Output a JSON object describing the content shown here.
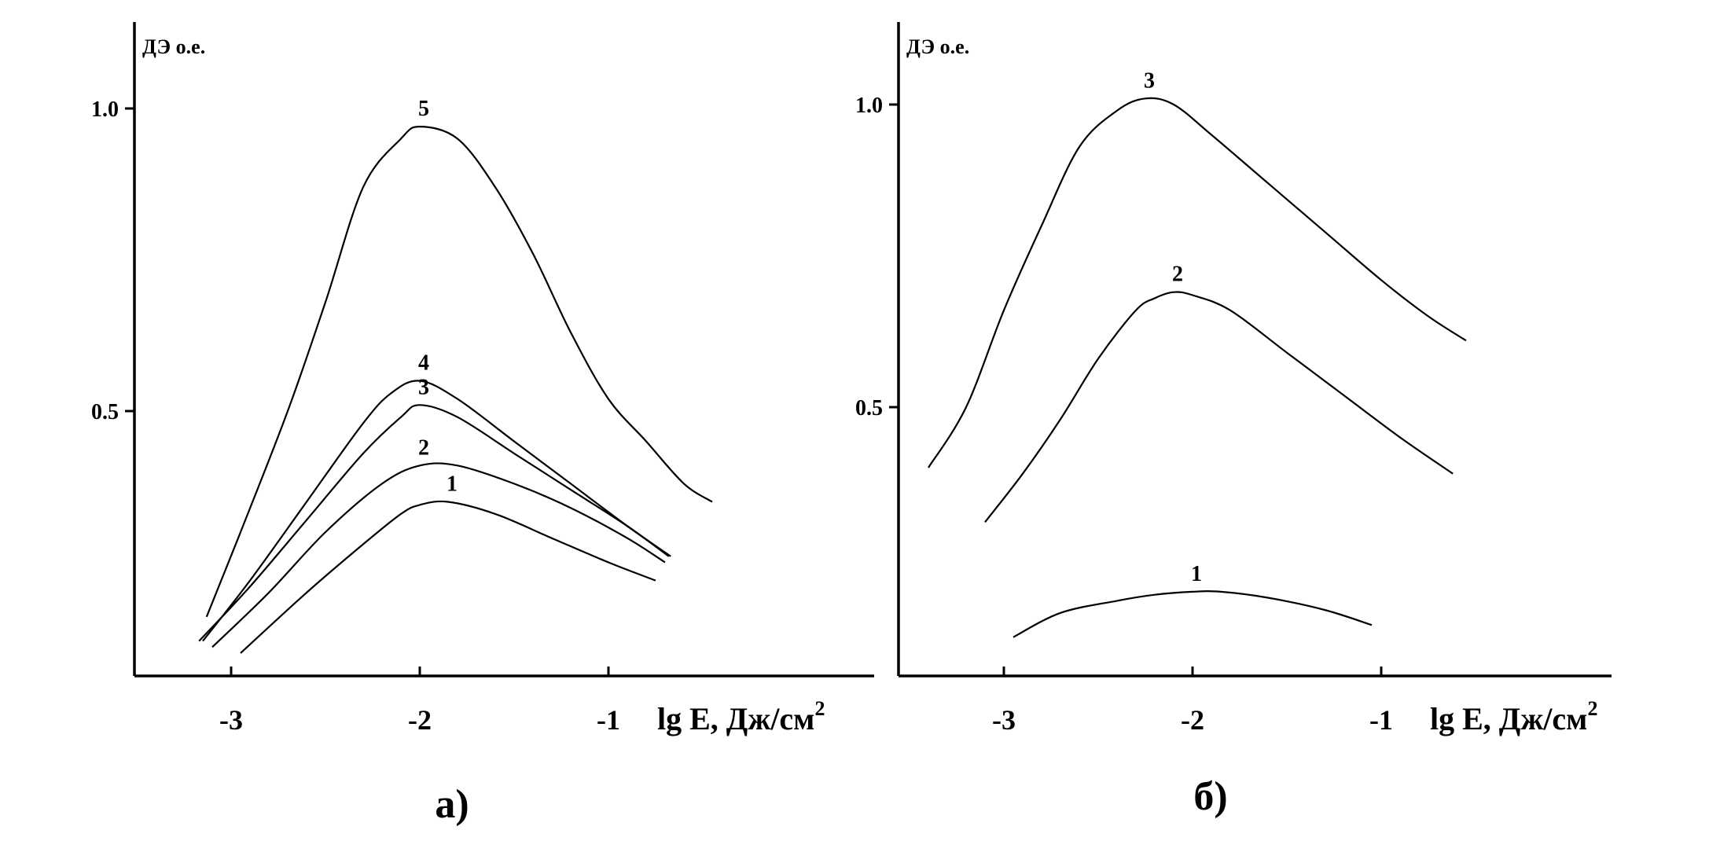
{
  "chart_data": [
    {
      "type": "line",
      "panel_label": "а)",
      "ylabel": "ДЭ о.е.",
      "xlabel": "lg E, Дж/см",
      "xlabel_superscript": "2",
      "xticks": [
        -3,
        -2,
        -1
      ],
      "xtick_labels": [
        "-3",
        "-2",
        "-1"
      ],
      "yticks": [
        0.5,
        1.0
      ],
      "ytick_labels": [
        "0.5",
        "1.0"
      ],
      "xlim": [
        -3.5,
        -0.3
      ],
      "ylim": [
        0.05,
        1.14
      ],
      "grid": false,
      "series": [
        {
          "name": "1",
          "x": [
            -2.95,
            -2.6,
            -2.3,
            -2.1,
            -2.0,
            -1.85,
            -1.6,
            -1.3,
            -1.0,
            -0.75
          ],
          "y": [
            0.1,
            0.2,
            0.28,
            0.33,
            0.345,
            0.35,
            0.33,
            0.29,
            0.25,
            0.22
          ]
        },
        {
          "name": "2",
          "x": [
            -3.1,
            -2.8,
            -2.5,
            -2.2,
            -2.0,
            -1.8,
            -1.5,
            -1.2,
            -0.9,
            -0.7
          ],
          "y": [
            0.11,
            0.2,
            0.3,
            0.38,
            0.41,
            0.41,
            0.38,
            0.34,
            0.29,
            0.25
          ]
        },
        {
          "name": "3",
          "x": [
            -3.17,
            -2.9,
            -2.6,
            -2.3,
            -2.1,
            -2.0,
            -1.8,
            -1.5,
            -1.2,
            -0.9,
            -0.68
          ],
          "y": [
            0.12,
            0.21,
            0.32,
            0.43,
            0.49,
            0.51,
            0.49,
            0.43,
            0.37,
            0.31,
            0.26
          ]
        },
        {
          "name": "4",
          "x": [
            -3.15,
            -2.9,
            -2.6,
            -2.3,
            -2.15,
            -2.0,
            -1.8,
            -1.5,
            -1.2,
            -0.9,
            -0.67
          ],
          "y": [
            0.12,
            0.22,
            0.35,
            0.48,
            0.53,
            0.55,
            0.52,
            0.45,
            0.38,
            0.31,
            0.26
          ]
        },
        {
          "name": "5",
          "x": [
            -3.13,
            -2.95,
            -2.7,
            -2.5,
            -2.3,
            -2.1,
            -2.0,
            -1.8,
            -1.6,
            -1.4,
            -1.2,
            -1.0,
            -0.8,
            -0.6,
            -0.45
          ],
          "y": [
            0.16,
            0.3,
            0.5,
            0.68,
            0.87,
            0.95,
            0.97,
            0.95,
            0.87,
            0.76,
            0.63,
            0.52,
            0.45,
            0.38,
            0.35
          ]
        }
      ]
    },
    {
      "type": "line",
      "panel_label": "б)",
      "ylabel": "ДЭ о.е.",
      "xlabel": "lg E, Дж/см",
      "xlabel_superscript": "2",
      "xticks": [
        -3,
        -2,
        -1
      ],
      "xtick_labels": [
        "-3",
        "-2",
        "-1"
      ],
      "yticks": [
        0.5,
        1.0
      ],
      "ytick_labels": [
        "0.5",
        "1.0"
      ],
      "xlim": [
        -3.5,
        -0.3
      ],
      "ylim": [
        0.05,
        1.14
      ],
      "grid": false,
      "series": [
        {
          "name": "1",
          "x": [
            -2.95,
            -2.7,
            -2.4,
            -2.2,
            -2.0,
            -1.85,
            -1.6,
            -1.3,
            -1.05
          ],
          "y": [
            0.12,
            0.16,
            0.18,
            0.19,
            0.195,
            0.195,
            0.185,
            0.165,
            0.14
          ]
        },
        {
          "name": "2",
          "x": [
            -3.1,
            -2.9,
            -2.7,
            -2.5,
            -2.3,
            -2.2,
            -2.1,
            -2.0,
            -1.8,
            -1.5,
            -1.2,
            -0.9,
            -0.62
          ],
          "y": [
            0.31,
            0.39,
            0.48,
            0.58,
            0.66,
            0.68,
            0.69,
            0.685,
            0.66,
            0.59,
            0.52,
            0.45,
            0.39
          ]
        },
        {
          "name": "3",
          "x": [
            -3.4,
            -3.2,
            -3.0,
            -2.8,
            -2.6,
            -2.4,
            -2.25,
            -2.1,
            -1.9,
            -1.6,
            -1.3,
            -1.0,
            -0.75,
            -0.55
          ],
          "y": [
            0.4,
            0.5,
            0.66,
            0.8,
            0.93,
            0.99,
            1.01,
            1.0,
            0.95,
            0.87,
            0.79,
            0.71,
            0.65,
            0.61
          ]
        }
      ]
    }
  ]
}
